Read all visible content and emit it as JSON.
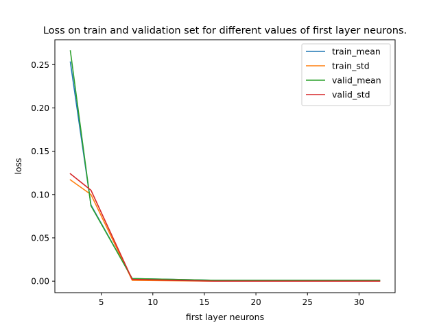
{
  "chart_data": {
    "type": "line",
    "title": "Loss on train and validation set for different values of first layer neurons.",
    "xlabel": "first layer neurons",
    "ylabel": "loss",
    "x": [
      2,
      4,
      8,
      16,
      32
    ],
    "xlim": [
      0.5,
      33.5
    ],
    "ylim": [
      -0.0133,
      0.2787
    ],
    "xticks": [
      5,
      10,
      15,
      20,
      25,
      30
    ],
    "yticks": [
      0.0,
      0.05,
      0.1,
      0.15,
      0.2,
      0.25
    ],
    "ytick_labels": [
      "0.00",
      "0.05",
      "0.10",
      "0.15",
      "0.20",
      "0.25"
    ],
    "grid": false,
    "legend_position": "top-right",
    "series": [
      {
        "name": "train_mean",
        "color": "#1f77b4",
        "values": [
          0.253,
          0.088,
          0.003,
          0.001,
          0.001
        ]
      },
      {
        "name": "train_std",
        "color": "#ff7f0e",
        "values": [
          0.117,
          0.1,
          0.001,
          0.0,
          0.0
        ]
      },
      {
        "name": "valid_mean",
        "color": "#2ca02c",
        "values": [
          0.266,
          0.087,
          0.003,
          0.001,
          0.001
        ]
      },
      {
        "name": "valid_std",
        "color": "#d62728",
        "values": [
          0.124,
          0.105,
          0.002,
          0.0,
          0.0
        ]
      }
    ]
  }
}
